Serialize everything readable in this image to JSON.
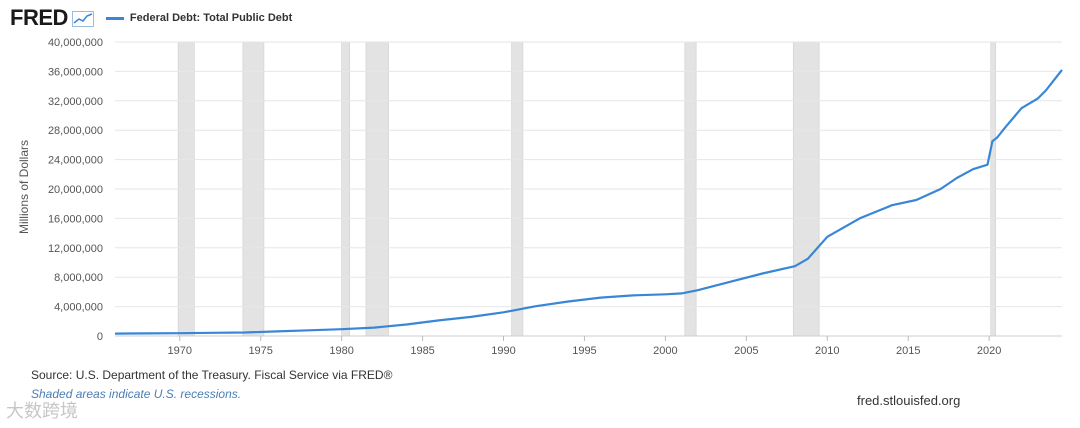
{
  "header": {
    "logo": "FRED",
    "legend_label": "Federal Debt: Total Public Debt"
  },
  "colors": {
    "series": "#3a86d6",
    "recession": "#e3e3e3",
    "grid": "#e6e6e6",
    "axis": "#555555"
  },
  "icons": {
    "logo_icon": "line-chart-icon"
  },
  "footer": {
    "source": "Source: U.S. Department of the Treasury. Fiscal Service via FRED®",
    "recession_note": "Shaded areas indicate U.S. recessions.",
    "site": "fred.stlouisfed.org",
    "watermark": "大数跨境"
  },
  "chart_data": {
    "type": "line",
    "title": "",
    "xlabel": "",
    "ylabel": "Millions of Dollars",
    "xlim": [
      1966,
      2024.5
    ],
    "ylim": [
      0,
      40000000
    ],
    "grid": true,
    "legend_position": "top-left",
    "x_ticks": [
      1970,
      1975,
      1980,
      1985,
      1990,
      1995,
      2000,
      2005,
      2010,
      2015,
      2020
    ],
    "y_ticks": [
      0,
      4000000,
      8000000,
      12000000,
      16000000,
      20000000,
      24000000,
      28000000,
      32000000,
      36000000,
      40000000
    ],
    "y_tick_labels": [
      "0",
      "4,000,000",
      "8,000,000",
      "12,000,000",
      "16,000,000",
      "20,000,000",
      "24,000,000",
      "28,000,000",
      "32,000,000",
      "36,000,000",
      "40,000,000"
    ],
    "recessions": [
      [
        1969.9,
        1970.9
      ],
      [
        1973.9,
        1975.2
      ],
      [
        1980.0,
        1980.5
      ],
      [
        1981.5,
        1982.9
      ],
      [
        1990.5,
        1991.2
      ],
      [
        2001.2,
        2001.9
      ],
      [
        2007.9,
        2009.5
      ],
      [
        2020.1,
        2020.4
      ]
    ],
    "series": [
      {
        "name": "Federal Debt: Total Public Debt",
        "x": [
          1966,
          1968,
          1970,
          1972,
          1974,
          1976,
          1978,
          1980,
          1982,
          1984,
          1986,
          1988,
          1990,
          1992,
          1994,
          1996,
          1998,
          2000,
          2001,
          2002,
          2004,
          2006,
          2008,
          2008.8,
          2010,
          2012,
          2014,
          2015.5,
          2017,
          2018,
          2019,
          2019.9,
          2020.2,
          2020.5,
          2021,
          2022,
          2023,
          2023.5,
          2024,
          2024.5
        ],
        "y": [
          320000,
          350000,
          380000,
          430000,
          480000,
          620000,
          780000,
          930000,
          1140000,
          1570000,
          2120000,
          2600000,
          3230000,
          4060000,
          4690000,
          5220000,
          5530000,
          5670000,
          5800000,
          6230000,
          7380000,
          8500000,
          9500000,
          10500000,
          13500000,
          16000000,
          17800000,
          18500000,
          20000000,
          21500000,
          22700000,
          23300000,
          26500000,
          27000000,
          28400000,
          31000000,
          32300000,
          33400000,
          34800000,
          36200000
        ]
      }
    ]
  }
}
